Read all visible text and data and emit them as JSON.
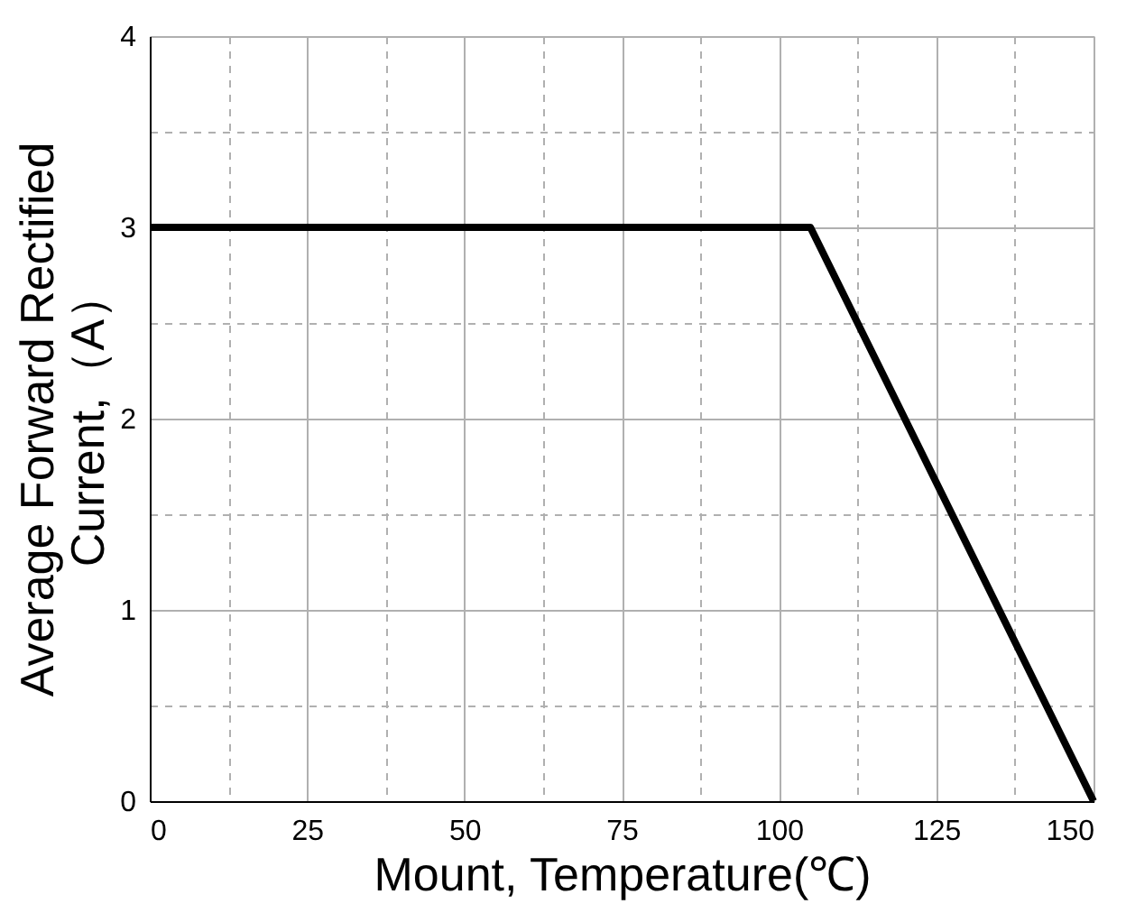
{
  "chart_data": {
    "type": "line",
    "xlabel": "Mount, Temperature(℃)",
    "ylabel": "Average  Forward  Rectified\nCurrent,（A）",
    "x": [
      0,
      105,
      150
    ],
    "series": [
      {
        "color": "#000000",
        "values": [
          3,
          3,
          0
        ]
      }
    ],
    "xlim": [
      0,
      150
    ],
    "ylim": [
      0,
      4
    ],
    "xticks": [
      0,
      {
        "value": 12.5,
        "label": null
      },
      25,
      {
        "value": 37.5,
        "label": null
      },
      50,
      {
        "value": 62.5,
        "label": null
      },
      75,
      {
        "value": 87.5,
        "label": null
      },
      100,
      {
        "value": 112.5,
        "label": null
      },
      125,
      {
        "value": 137.5,
        "label": null
      },
      150
    ],
    "yticks": [
      0,
      {
        "value": 0.5,
        "label": null
      },
      1,
      {
        "value": 1.5,
        "label": null
      },
      2,
      {
        "value": 2.5,
        "label": null
      },
      3,
      {
        "value": 3.5,
        "label": null
      },
      4
    ],
    "grid": true,
    "marker": "none",
    "line_style": "solid"
  }
}
